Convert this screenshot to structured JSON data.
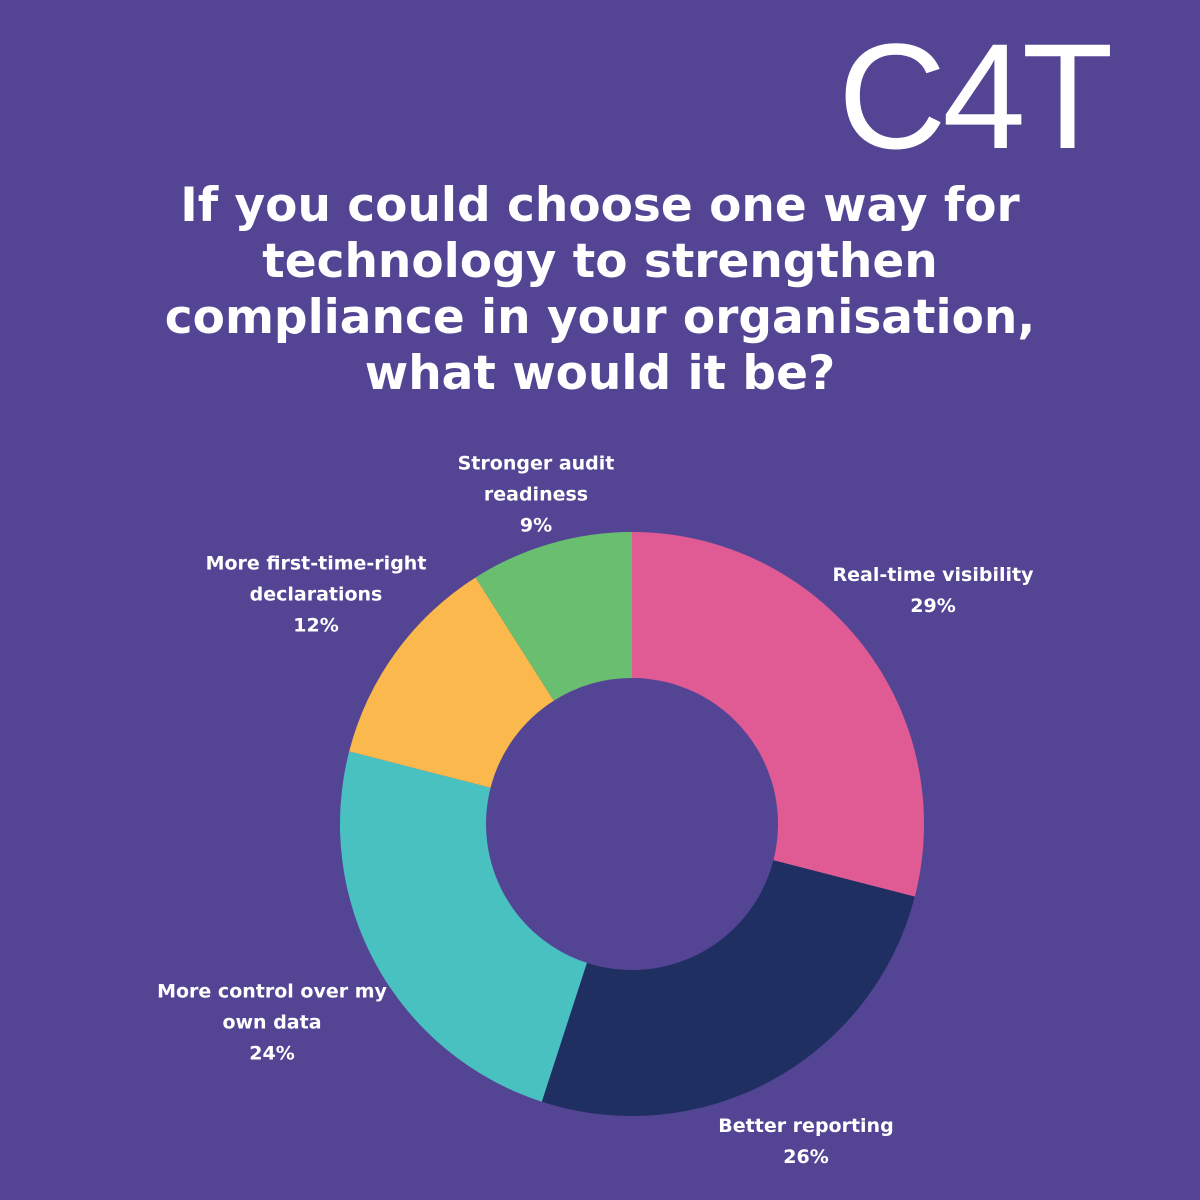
{
  "logo": "C4T",
  "chart_data": {
    "type": "donut",
    "title": "If you could choose one way for technology to strengthen compliance in your organisation, what would it be?",
    "categories": [
      "Real-time visibility",
      "Better reporting",
      "More control over my own data",
      "More first-time-right declarations",
      "Stronger audit readiness"
    ],
    "values": [
      29,
      26,
      24,
      12,
      9
    ],
    "value_labels": [
      "29%",
      "26%",
      "24%",
      "12%",
      "9%"
    ],
    "colors": [
      "#e05b93",
      "#1f2f62",
      "#4ac1c1",
      "#fbb84c",
      "#69bf6f"
    ]
  }
}
